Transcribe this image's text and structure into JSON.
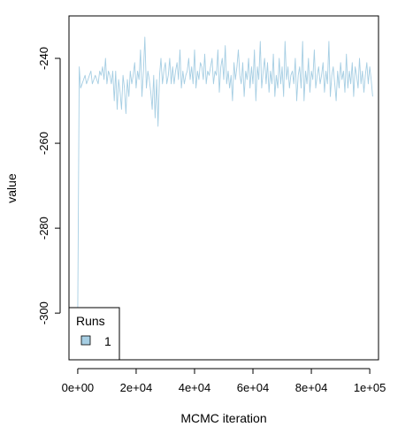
{
  "chart_data": {
    "type": "line",
    "title": "",
    "xlabel": "MCMC iteration",
    "ylabel": "value",
    "xlim": [
      -3000,
      103000
    ],
    "ylim": [
      -311,
      -230
    ],
    "x_ticks": [
      0,
      20000,
      40000,
      60000,
      80000,
      100000
    ],
    "x_tick_labels": [
      "0e+00",
      "2e+04",
      "4e+04",
      "6e+04",
      "8e+04",
      "1e+05"
    ],
    "y_ticks": [
      -300,
      -280,
      -260,
      -240
    ],
    "y_tick_labels": [
      "-300",
      "-280",
      "-260",
      "-240"
    ],
    "grid": false,
    "legend": {
      "title": "Runs",
      "position": "bottom-left"
    },
    "series": [
      {
        "name": "1",
        "color": "#a6cee3",
        "x_start": 0,
        "x_step": 500,
        "values": [
          -300,
          -242,
          -247,
          -246,
          -245,
          -244,
          -246,
          -245,
          -244,
          -243,
          -246,
          -245,
          -244,
          -245,
          -246,
          -243,
          -244,
          -242,
          -245,
          -240,
          -246,
          -243,
          -244,
          -246,
          -243,
          -250,
          -243,
          -252,
          -245,
          -248,
          -252,
          -244,
          -247,
          -253,
          -245,
          -249,
          -243,
          -246,
          -244,
          -241,
          -247,
          -243,
          -245,
          -238,
          -249,
          -243,
          -235,
          -247,
          -243,
          -245,
          -248,
          -252,
          -244,
          -254,
          -245,
          -256,
          -244,
          -240,
          -246,
          -243,
          -241,
          -246,
          -244,
          -240,
          -246,
          -242,
          -246,
          -243,
          -241,
          -245,
          -238,
          -247,
          -243,
          -246,
          -244,
          -243,
          -240,
          -245,
          -242,
          -246,
          -238,
          -247,
          -243,
          -245,
          -241,
          -242,
          -245,
          -239,
          -246,
          -243,
          -244,
          -242,
          -240,
          -246,
          -243,
          -244,
          -238,
          -248,
          -242,
          -240,
          -245,
          -237,
          -246,
          -243,
          -247,
          -244,
          -250,
          -241,
          -245,
          -242,
          -238,
          -244,
          -246,
          -241,
          -249,
          -243,
          -245,
          -240,
          -247,
          -242,
          -246,
          -238,
          -250,
          -242,
          -245,
          -236,
          -247,
          -243,
          -240,
          -246,
          -241,
          -248,
          -243,
          -246,
          -239,
          -249,
          -244,
          -247,
          -240,
          -246,
          -242,
          -249,
          -236,
          -245,
          -242,
          -247,
          -244,
          -243,
          -246,
          -240,
          -250,
          -244,
          -242,
          -247,
          -236,
          -250,
          -243,
          -246,
          -240,
          -248,
          -243,
          -245,
          -238,
          -247,
          -244,
          -242,
          -246,
          -244,
          -241,
          -248,
          -243,
          -246,
          -236,
          -249,
          -244,
          -242,
          -246,
          -250,
          -243,
          -247,
          -241,
          -245,
          -243,
          -248,
          -239,
          -247,
          -243,
          -246,
          -241,
          -249,
          -242,
          -244,
          -247,
          -240,
          -246,
          -243,
          -248,
          -244,
          -241,
          -246,
          -242,
          -245,
          -249
        ]
      }
    ]
  }
}
